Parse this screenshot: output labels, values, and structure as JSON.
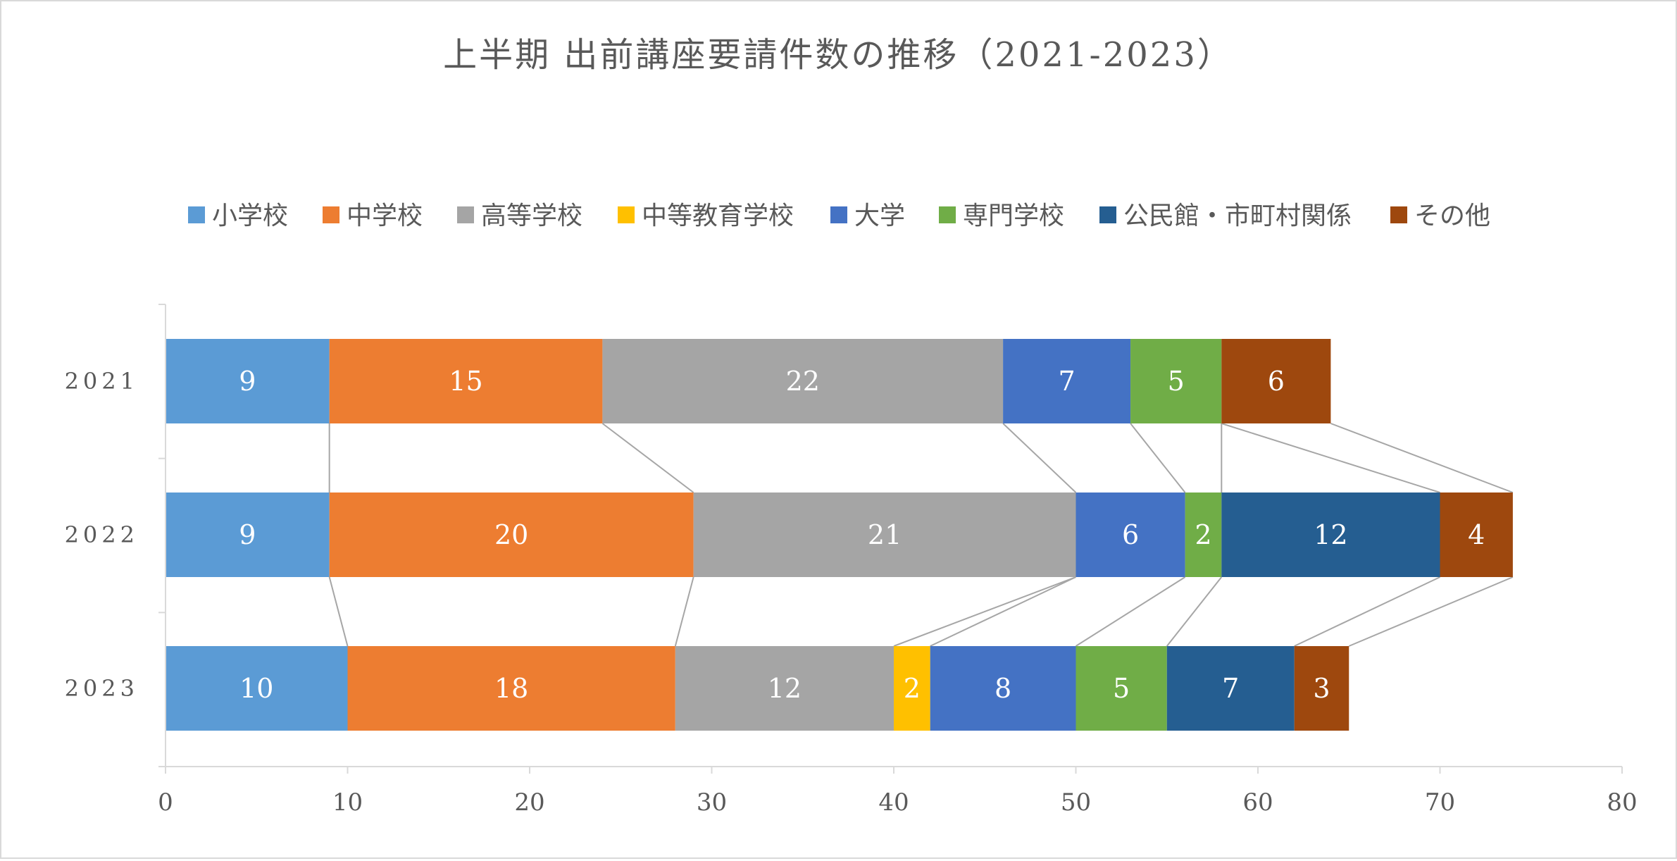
{
  "chart_data": {
    "type": "bar",
    "orientation": "horizontal",
    "stacked": true,
    "title": "上半期 出前講座要請件数の推移（2021-2023）",
    "xlabel": "",
    "ylabel": "",
    "xlim": [
      0,
      80
    ],
    "x_ticks": [
      0,
      10,
      20,
      30,
      40,
      50,
      60,
      70,
      80
    ],
    "categories": [
      "2021",
      "2022",
      "2023"
    ],
    "legend_position": "top",
    "grid": false,
    "series_lines": true,
    "series": [
      {
        "name": "小学校",
        "color": "#5b9bd5",
        "values": [
          9,
          9,
          10
        ]
      },
      {
        "name": "中学校",
        "color": "#ed7d31",
        "values": [
          15,
          20,
          18
        ]
      },
      {
        "name": "高等学校",
        "color": "#a5a5a5",
        "values": [
          22,
          21,
          12
        ]
      },
      {
        "name": "中等教育学校",
        "color": "#ffc000",
        "values": [
          0,
          0,
          2
        ]
      },
      {
        "name": "大学",
        "color": "#4472c4",
        "values": [
          7,
          6,
          8
        ]
      },
      {
        "name": "専門学校",
        "color": "#70ad47",
        "values": [
          5,
          2,
          5
        ]
      },
      {
        "name": "公民館・市町村関係",
        "color": "#255e91",
        "values": [
          0,
          12,
          7
        ]
      },
      {
        "name": "その他",
        "color": "#9e480e",
        "values": [
          6,
          4,
          3
        ]
      }
    ]
  }
}
